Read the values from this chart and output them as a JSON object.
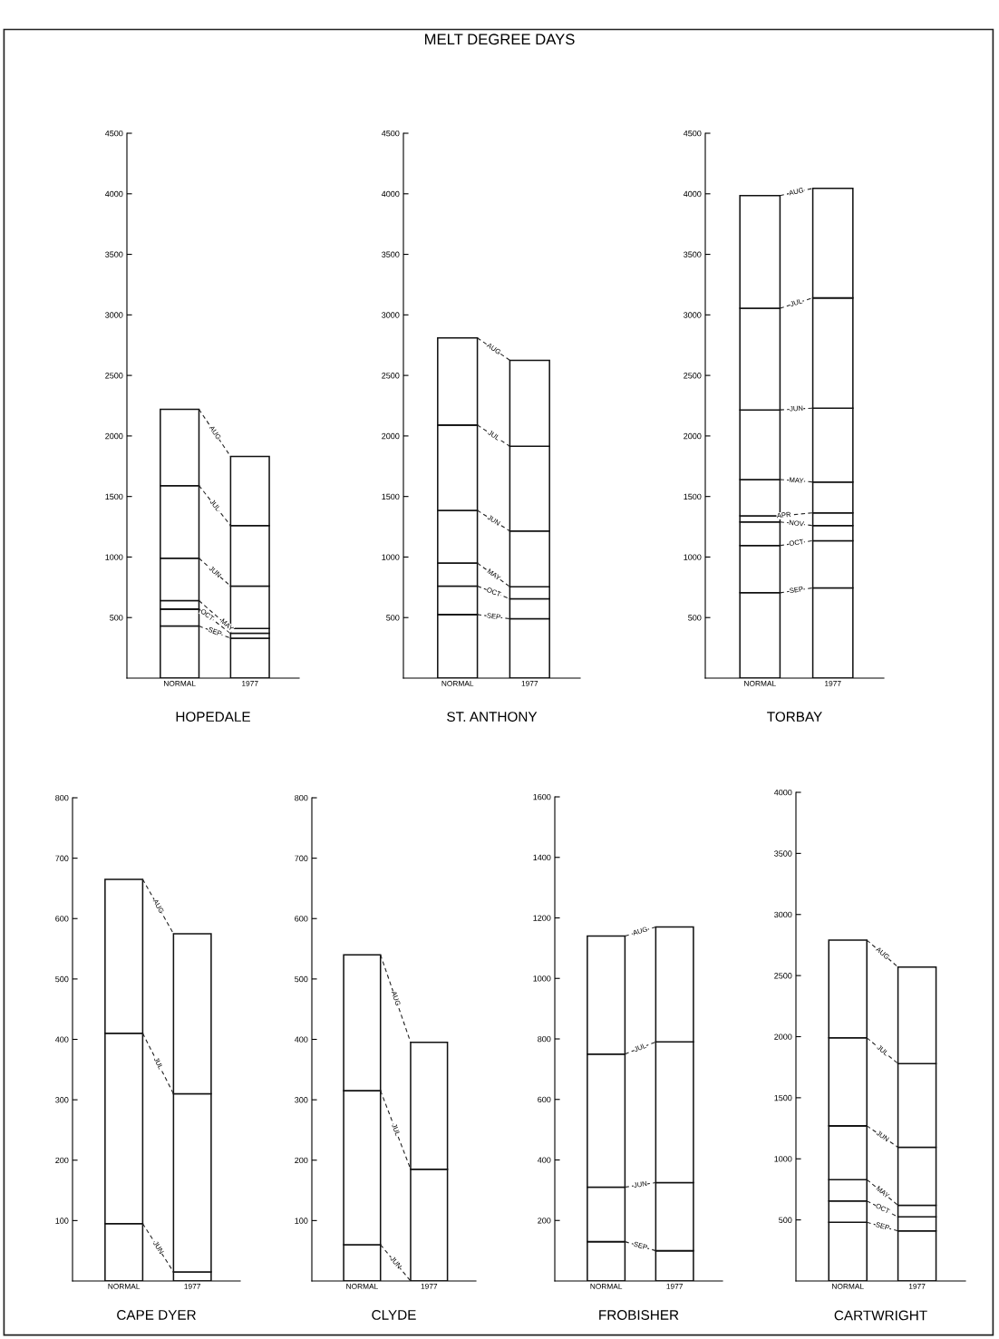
{
  "chart_data": [
    {
      "type": "bar",
      "stacked": true,
      "title": "HOPEDALE",
      "annotations": [
        "MELT DEGREE DAYS"
      ],
      "categories": [
        "NORMAL",
        "1977"
      ],
      "ylim": [
        0,
        4500
      ],
      "yticks": [
        500,
        1000,
        1500,
        2000,
        2500,
        3000,
        3500,
        4000,
        4500
      ],
      "series": [
        {
          "name": "SEP",
          "color": "#ffffff",
          "values": [
            430,
            330
          ]
        },
        {
          "name": "OCT",
          "color": "#ffffff",
          "values": [
            140,
            40
          ]
        },
        {
          "name": "MAY",
          "color": "#ffffff",
          "values": [
            70,
            40
          ]
        },
        {
          "name": "JUN",
          "color": "#ffffff",
          "values": [
            350,
            350
          ]
        },
        {
          "name": "JUL",
          "color": "#ffffff",
          "values": [
            600,
            500
          ]
        },
        {
          "name": "AUG",
          "color": "#ffffff",
          "values": [
            630,
            570
          ]
        }
      ]
    },
    {
      "type": "bar",
      "stacked": true,
      "title": "ST. ANTHONY",
      "categories": [
        "NORMAL",
        "1977"
      ],
      "ylim": [
        0,
        4500
      ],
      "yticks": [
        500,
        1000,
        1500,
        2000,
        2500,
        3000,
        3500,
        4000,
        4500
      ],
      "series": [
        {
          "name": "SEP",
          "color": "#ffffff",
          "values": [
            525,
            490
          ]
        },
        {
          "name": "OCT",
          "color": "#ffffff",
          "values": [
            235,
            165
          ]
        },
        {
          "name": "MAY",
          "color": "#ffffff",
          "values": [
            190,
            100
          ]
        },
        {
          "name": "JUN",
          "color": "#ffffff",
          "values": [
            435,
            460
          ]
        },
        {
          "name": "JUL",
          "color": "#ffffff",
          "values": [
            705,
            700
          ]
        },
        {
          "name": "AUG",
          "color": "#ffffff",
          "values": [
            720,
            710
          ]
        }
      ]
    },
    {
      "type": "bar",
      "stacked": true,
      "title": "TORBAY",
      "categories": [
        "NORMAL",
        "1977"
      ],
      "ylim": [
        0,
        4500
      ],
      "yticks": [
        500,
        1000,
        1500,
        2000,
        2500,
        3000,
        3500,
        4000,
        4500
      ],
      "series": [
        {
          "name": "SEP",
          "color": "#ffffff",
          "values": [
            705,
            745
          ]
        },
        {
          "name": "OCT",
          "color": "#ffffff",
          "values": [
            390,
            390
          ]
        },
        {
          "name": "NOV",
          "color": "#ffffff",
          "values": [
            195,
            125
          ]
        },
        {
          "name": "APR",
          "color": "#ffffff",
          "values": [
            50,
            105
          ]
        },
        {
          "name": "MAY",
          "color": "#ffffff",
          "values": [
            300,
            255
          ]
        },
        {
          "name": "JUN",
          "color": "#ffffff",
          "values": [
            575,
            610
          ]
        },
        {
          "name": "JUL",
          "color": "#ffffff",
          "values": [
            840,
            910
          ]
        },
        {
          "name": "AUG",
          "color": "#ffffff",
          "values": [
            930,
            905
          ]
        }
      ]
    },
    {
      "type": "bar",
      "stacked": true,
      "title": "CAPE DYER",
      "categories": [
        "NORMAL",
        "1977"
      ],
      "ylim": [
        0,
        800
      ],
      "yticks": [
        100,
        200,
        300,
        400,
        500,
        600,
        700,
        800
      ],
      "series": [
        {
          "name": "JUN",
          "color": "#ffffff",
          "values": [
            95,
            15
          ]
        },
        {
          "name": "JUL",
          "color": "#ffffff",
          "values": [
            315,
            295
          ]
        },
        {
          "name": "AUG",
          "color": "#ffffff",
          "values": [
            255,
            265
          ]
        }
      ]
    },
    {
      "type": "bar",
      "stacked": true,
      "title": "CLYDE",
      "categories": [
        "NORMAL",
        "1977"
      ],
      "ylim": [
        0,
        800
      ],
      "yticks": [
        100,
        200,
        300,
        400,
        500,
        600,
        700,
        800
      ],
      "series": [
        {
          "name": "JUN",
          "color": "#ffffff",
          "values": [
            60,
            0
          ]
        },
        {
          "name": "JUL",
          "color": "#ffffff",
          "values": [
            255,
            185
          ]
        },
        {
          "name": "AUG",
          "color": "#ffffff",
          "values": [
            225,
            210
          ]
        }
      ]
    },
    {
      "type": "bar",
      "stacked": true,
      "title": "FROBISHER",
      "categories": [
        "NORMAL",
        "1977"
      ],
      "ylim": [
        0,
        1600
      ],
      "yticks": [
        200,
        400,
        600,
        800,
        1000,
        1200,
        1400,
        1600
      ],
      "series": [
        {
          "name": "SEP",
          "color": "#ffffff",
          "values": [
            130,
            100
          ]
        },
        {
          "name": "JUN",
          "color": "#ffffff",
          "values": [
            180,
            225
          ]
        },
        {
          "name": "JUL",
          "color": "#ffffff",
          "values": [
            440,
            465
          ]
        },
        {
          "name": "AUG",
          "color": "#ffffff",
          "values": [
            390,
            380
          ]
        }
      ]
    },
    {
      "type": "bar",
      "stacked": true,
      "title": "CARTWRIGHT",
      "categories": [
        "NORMAL",
        "1977"
      ],
      "ylim": [
        0,
        4000
      ],
      "yticks": [
        500,
        1000,
        1500,
        2000,
        2500,
        3000,
        3500,
        4000
      ],
      "series": [
        {
          "name": "SEP",
          "color": "#ffffff",
          "values": [
            480,
            410
          ]
        },
        {
          "name": "OCT",
          "color": "#ffffff",
          "values": [
            175,
            115
          ]
        },
        {
          "name": "MAY",
          "color": "#ffffff",
          "values": [
            175,
            95
          ]
        },
        {
          "name": "JUN",
          "color": "#ffffff",
          "values": [
            440,
            475
          ]
        },
        {
          "name": "JUL",
          "color": "#ffffff",
          "values": [
            720,
            685
          ]
        },
        {
          "name": "AUG",
          "color": "#ffffff",
          "values": [
            800,
            790
          ]
        }
      ]
    }
  ]
}
